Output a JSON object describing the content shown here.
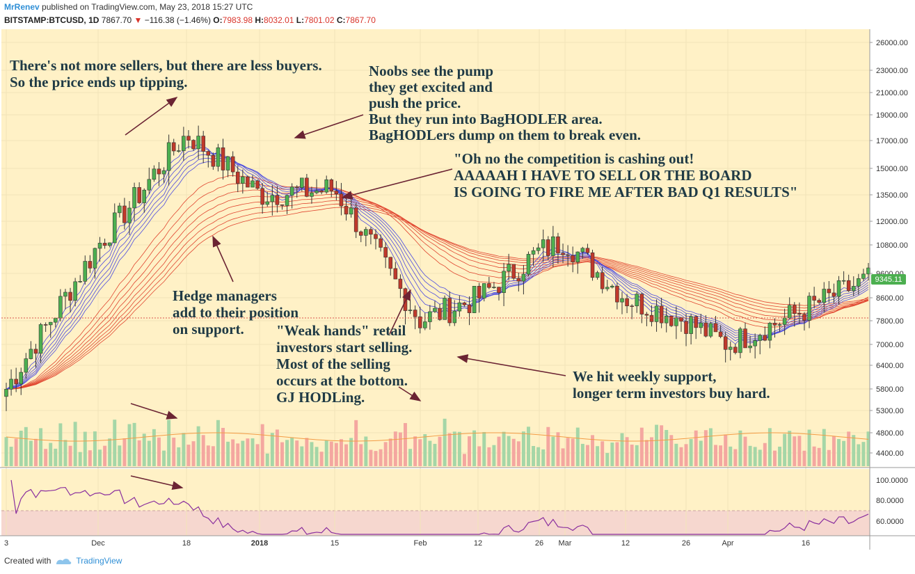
{
  "header": {
    "user": "MrRenev",
    "published": "published on TradingView.com, May 23, 2018 15:27 UTC",
    "symbol": "BITSTAMP:BTCUSD, 1D",
    "last": "7867.70",
    "change": "−116.38 (−1.46%)",
    "o_label": "O:",
    "o_val": "7983.98",
    "h_label": "H:",
    "h_val": "8032.01",
    "l_label": "L:",
    "l_val": "7801.02",
    "c_label": "C:",
    "c_val": "7867.70"
  },
  "footer": {
    "created_with": "Created with",
    "brand": "TradingView"
  },
  "price_label": "9345.11",
  "colors": {
    "bg": "#fff1c6",
    "up": "#4caf50",
    "down": "#c0392b",
    "vol_up": "#a5d6a7",
    "vol_down": "#f4a7a0",
    "fast_ema": "#4a4ae0",
    "slow_ema": "#e0452f",
    "rsi": "#8a2f9e",
    "annotation": "#1f3a45",
    "arrow": "#6b2433"
  },
  "annotations": [
    {
      "lines": [
        "There's not more sellers, but there are less buyers.",
        "So the price ends up tipping."
      ]
    },
    {
      "lines": [
        "Noobs see the pump",
        "they get excited and",
        "push the price.",
        "But they run into BagHODLER area.",
        "BagHODLers dump on them to break even."
      ]
    },
    {
      "lines": [
        "\"Oh no the competition is cashing out!",
        "AAAAAH I HAVE TO SELL OR THE BOARD",
        "IS GOING TO FIRE ME AFTER BAD Q1 RESULTS\""
      ]
    },
    {
      "lines": [
        "Hedge managers",
        "add to their position",
        "on support."
      ]
    },
    {
      "lines": [
        "\"Weak hands\" retail",
        "investors start selling.",
        "Most of the selling",
        "occurs at the bottom.",
        "GJ HODLing."
      ]
    },
    {
      "lines": [
        "We hit weekly support,",
        "longer term investors buy hard."
      ]
    }
  ],
  "chart_data": [
    {
      "type": "candlestick",
      "symbol": "BITSTAMP:BTCUSD",
      "interval": "1D",
      "y_ticks": [
        "26000.00",
        "23000.00",
        "21000.00",
        "19000.00",
        "17000.00",
        "15000.00",
        "13500.00",
        "12000.00",
        "10800.00",
        "9600.00",
        "8600.00",
        "7800.00",
        "7000.00",
        "6400.00",
        "5800.00",
        "5300.00",
        "4800.00",
        "4400.00"
      ],
      "x_ticks": [
        "3",
        "Dec",
        "18",
        "2018",
        "15",
        "Feb",
        "12",
        "26",
        "Mar",
        "12",
        "26",
        "Apr",
        "16"
      ],
      "y_scale": "log",
      "close_path": [
        [
          "3",
          5800
        ],
        [
          "Dec",
          10800
        ],
        [
          "18",
          17500
        ],
        [
          "2018",
          13500
        ],
        [
          "15",
          13800
        ],
        [
          "Feb",
          7800
        ],
        [
          "12",
          8600
        ],
        [
          "26",
          10500
        ],
        [
          "Mar",
          11000
        ],
        [
          "12",
          8600
        ],
        [
          "26",
          7800
        ],
        [
          "Apr",
          7000
        ],
        [
          "16",
          8200
        ],
        [
          "end",
          9345
        ]
      ],
      "last_price": 9345.11,
      "grid": true
    },
    {
      "type": "line",
      "name": "",
      "y_ticks": [
        "100.0000",
        "80.0000",
        "60.0000"
      ],
      "band": [
        60,
        70
      ]
    }
  ]
}
